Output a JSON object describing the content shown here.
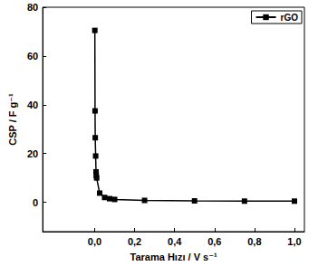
{
  "chart_data": {
    "type": "line",
    "x_label": "Tarama Hızı / V s⁻¹",
    "y_label": "CSP / F g⁻¹",
    "series": [
      {
        "name": "rGO",
        "color": "#000000",
        "marker": "square",
        "line_style": "solid",
        "x": [
          0.001,
          0.002,
          0.003,
          0.005,
          0.007,
          0.008,
          0.01,
          0.025,
          0.05,
          0.075,
          0.1,
          0.25,
          0.5,
          0.75,
          1.0
        ],
        "values": [
          70.5,
          37.5,
          26.5,
          19,
          12.5,
          11,
          10,
          3.8,
          2,
          1.5,
          1.2,
          0.8,
          0.6,
          0.5,
          0.5
        ]
      }
    ],
    "xlim": [
      -0.26,
      1.05
    ],
    "xticks": [
      {
        "value": 0,
        "label": "0,0"
      },
      {
        "value": 0.2,
        "label": "0,2"
      },
      {
        "value": 0.4,
        "label": "0,4"
      },
      {
        "value": 0.6,
        "label": "0,6"
      },
      {
        "value": 0.8,
        "label": "0,8"
      },
      {
        "value": 1.0,
        "label": "1,0"
      }
    ],
    "ylim": [
      -12,
      80
    ],
    "yticks": [
      0,
      20,
      40,
      60,
      80
    ],
    "grid": false,
    "legend": "upper right"
  }
}
